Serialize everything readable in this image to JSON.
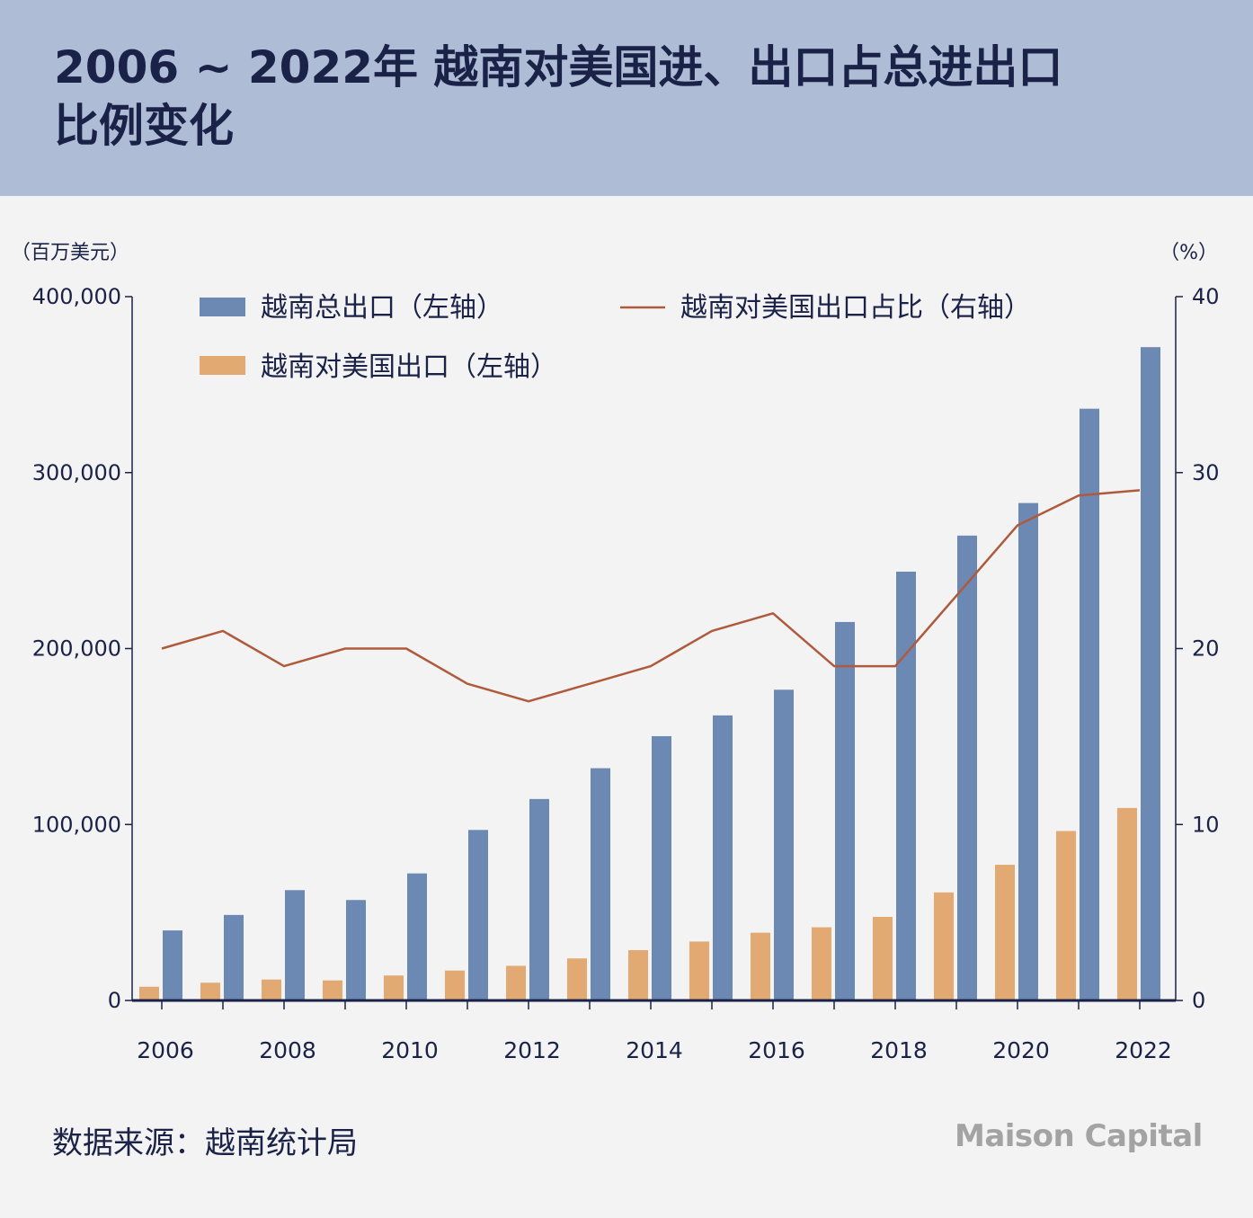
{
  "header": {
    "title_line1": "2006 ~ 2022年 越南对美国进、出口占总进出口",
    "title_line2": "比例变化"
  },
  "footer": {
    "source": "数据来源：越南统计局",
    "brand": "Maison Capital"
  },
  "colors": {
    "header_bg": "#afbcd6",
    "page_bg": "#f3f3f3",
    "text": "#1b2248",
    "total_exports": "#6b89b3",
    "us_exports": "#e3a972",
    "share_line": "#b05a3c"
  },
  "chart_data": {
    "type": "bar",
    "title": "",
    "left_axis": {
      "unit_label": "（百万美元）",
      "ylim": [
        0,
        400000
      ],
      "ticks": [
        0,
        100000,
        200000,
        300000,
        400000
      ],
      "tick_labels": [
        "0",
        "100,000",
        "200,000",
        "300,000",
        "400,000"
      ]
    },
    "right_axis": {
      "unit_label": "（%）",
      "ylim": [
        0,
        40
      ],
      "ticks": [
        0,
        10,
        20,
        30,
        40
      ],
      "tick_labels": [
        "0",
        "10",
        "20",
        "30",
        "40"
      ]
    },
    "categories": [
      "2006",
      "2007",
      "2008",
      "2009",
      "2010",
      "2011",
      "2012",
      "2013",
      "2014",
      "2015",
      "2016",
      "2017",
      "2018",
      "2019",
      "2020",
      "2021",
      "2022"
    ],
    "x_tick_labels": [
      "2006",
      "2008",
      "2010",
      "2012",
      "2014",
      "2016",
      "2018",
      "2020",
      "2022"
    ],
    "series": [
      {
        "name": "越南总出口（左轴）",
        "type": "bar",
        "axis": "left",
        "values": [
          39800,
          48600,
          62700,
          57100,
          72200,
          96900,
          114500,
          132000,
          150200,
          162000,
          176600,
          215100,
          243700,
          264200,
          282700,
          336300,
          371300
        ]
      },
      {
        "name": "越南对美国出口（左轴）",
        "type": "bar",
        "axis": "left",
        "values": [
          7800,
          10100,
          11900,
          11400,
          14200,
          17000,
          19700,
          23900,
          28600,
          33500,
          38500,
          41600,
          47500,
          61400,
          77100,
          96300,
          109400
        ]
      },
      {
        "name": "越南对美国出口占比（右轴）",
        "type": "line",
        "axis": "right",
        "values": [
          20,
          21,
          19,
          20,
          20,
          18,
          17,
          18,
          19,
          21,
          22,
          19,
          19,
          23,
          27,
          28.7,
          29
        ]
      }
    ],
    "legend_position": "top",
    "grid": false
  }
}
